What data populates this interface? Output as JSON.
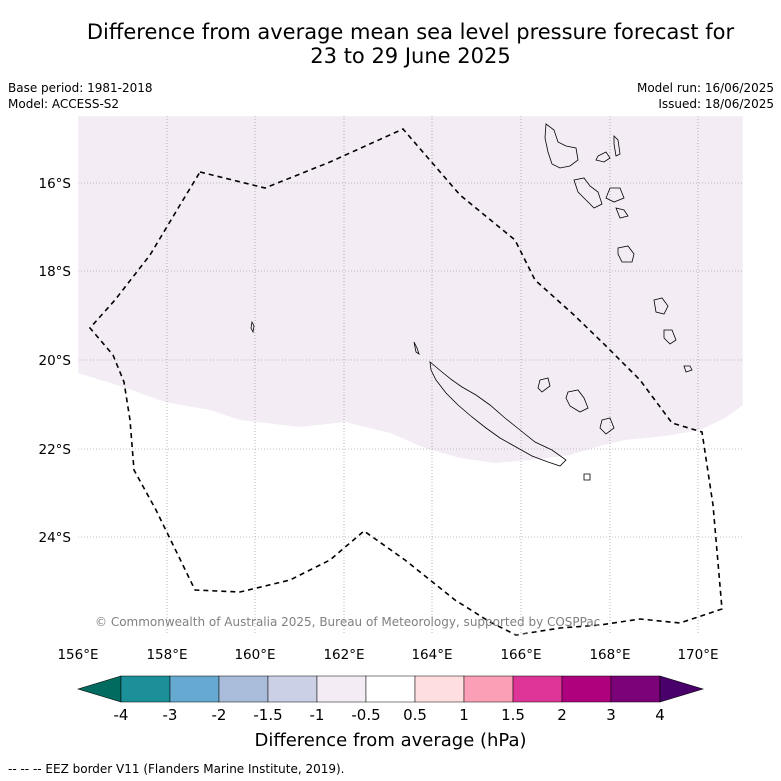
{
  "title": {
    "line1": "Difference from average mean sea level pressure forecast for",
    "line2": "23 to 29 June 2025"
  },
  "meta": {
    "base_period": "Base period: 1981-2018",
    "model": "Model: ACCESS-S2",
    "model_run": "Model run: 16/06/2025",
    "issued": "Issued: 18/06/2025"
  },
  "map": {
    "lon_ticks": [
      "156°E",
      "158°E",
      "160°E",
      "162°E",
      "164°E",
      "166°E",
      "168°E",
      "170°E"
    ],
    "lat_ticks": [
      "16°S",
      "18°S",
      "20°S",
      "22°S",
      "24°S"
    ],
    "copyright": "© Commonwealth of Australia 2025, Bureau of Meteorology, supported by COSPPac",
    "anomaly_fill_color": "#f3ecf5",
    "gridlines": true
  },
  "colorbar": {
    "labels": [
      "-4",
      "-3",
      "-2",
      "-1.5",
      "-1",
      "-0.5",
      "0.5",
      "1",
      "1.5",
      "2",
      "3",
      "4"
    ],
    "colors": [
      "#006b5e",
      "#1b9099",
      "#66a9d1",
      "#a9bcda",
      "#ccd0e6",
      "#f3ecf5",
      "#ffffff",
      "#fedede",
      "#fb9fb6",
      "#dd3497",
      "#ae017e",
      "#7a0177",
      "#49006a"
    ],
    "title": "Difference from average (hPa)"
  },
  "footnote": "--  --  -- EEZ border V11 (Flanders Marine Institute, 2019)."
}
